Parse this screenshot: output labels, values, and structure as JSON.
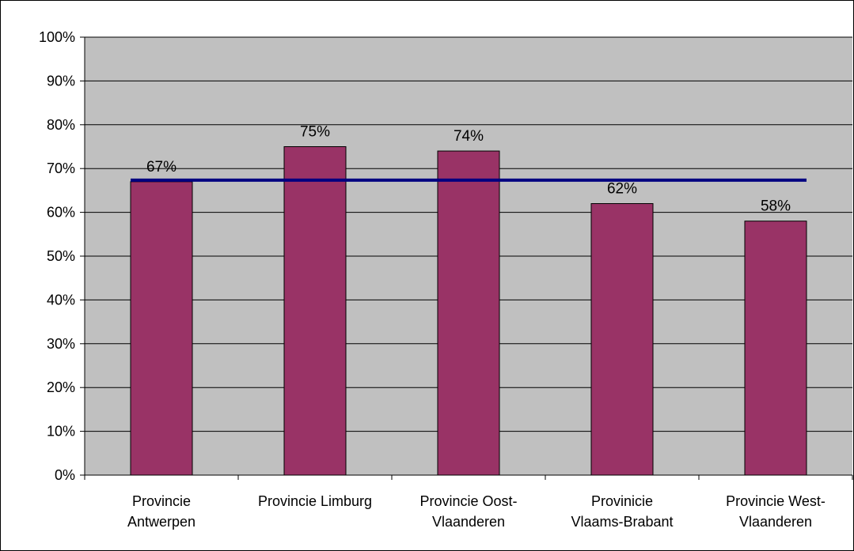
{
  "chart_data": {
    "type": "bar",
    "categories": [
      [
        "Provincie",
        "Antwerpen"
      ],
      [
        "Provincie Limburg"
      ],
      [
        "Provincie Oost-",
        "Vlaanderen"
      ],
      [
        "Provinicie",
        "Vlaams-Brabant"
      ],
      [
        "Provincie West-",
        "Vlaanderen"
      ]
    ],
    "values": [
      67,
      75,
      74,
      62,
      58
    ],
    "data_labels": [
      "67%",
      "75%",
      "74%",
      "62%",
      "58%"
    ],
    "reference_line": {
      "value": 67
    },
    "ylim": [
      0,
      100
    ],
    "yticks": [
      0,
      10,
      20,
      30,
      40,
      50,
      60,
      70,
      80,
      90,
      100
    ],
    "ytick_labels": [
      "0%",
      "10%",
      "20%",
      "30%",
      "40%",
      "50%",
      "60%",
      "70%",
      "80%",
      "90%",
      "100%"
    ],
    "grid": true,
    "legend": "none",
    "colors": {
      "bar": "#993366",
      "plot_background": "#c0c0c0",
      "reference_line": "#000080",
      "grid": "#000000"
    }
  }
}
